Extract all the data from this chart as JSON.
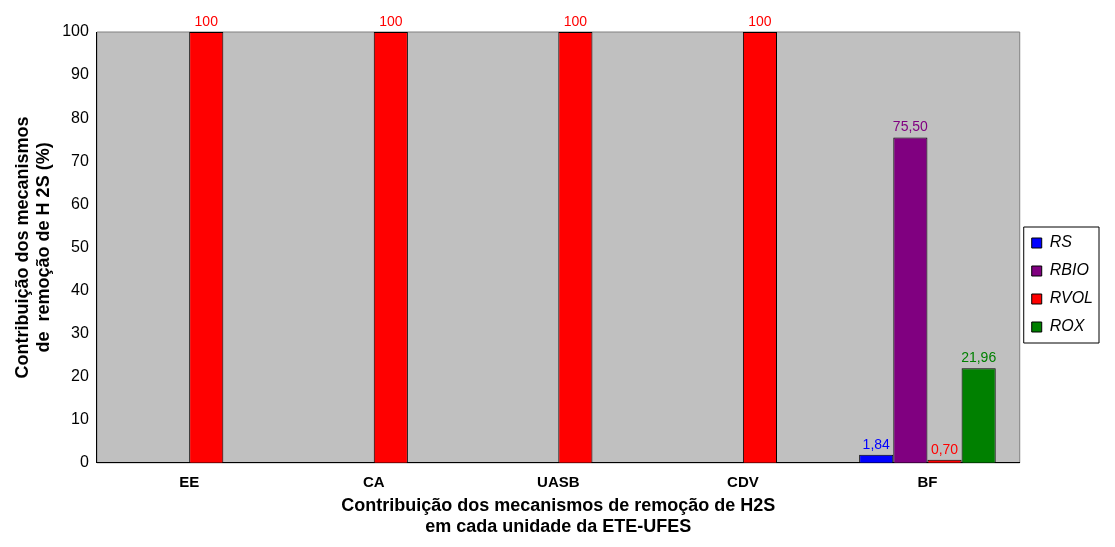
{
  "chart_data": {
    "type": "bar",
    "xlabel": [
      "Contribuição dos mecanismos de remoção de H2S",
      "em cada unidade da ETE-UFES"
    ],
    "ylabel": [
      "Contribuição dos mecanismos",
      "de  remoção de H 2S (%)"
    ],
    "categories": [
      "EE",
      "CA",
      "UASB",
      "CDV",
      "BF"
    ],
    "series": [
      {
        "name": "RS",
        "color": "#0000ff",
        "values": [
          null,
          null,
          null,
          null,
          1.84
        ],
        "value_labels": [
          null,
          null,
          null,
          null,
          "1,84"
        ]
      },
      {
        "name": "RBIO",
        "color": "#800080",
        "values": [
          null,
          null,
          null,
          null,
          75.5
        ],
        "value_labels": [
          null,
          null,
          null,
          null,
          "75,50"
        ]
      },
      {
        "name": "RVOL",
        "color": "#ff0000",
        "values": [
          100,
          100,
          100,
          100,
          0.7
        ],
        "value_labels": [
          "100",
          "100",
          "100",
          "100",
          "0,70"
        ]
      },
      {
        "name": "ROX",
        "color": "#008000",
        "values": [
          null,
          null,
          null,
          null,
          21.96
        ],
        "value_labels": [
          null,
          null,
          null,
          null,
          "21,96"
        ]
      }
    ],
    "ylim": [
      0,
      100
    ],
    "yticks": [
      0,
      10,
      20,
      30,
      40,
      50,
      60,
      70,
      80,
      90,
      100
    ],
    "grid": false,
    "legend": "right"
  }
}
